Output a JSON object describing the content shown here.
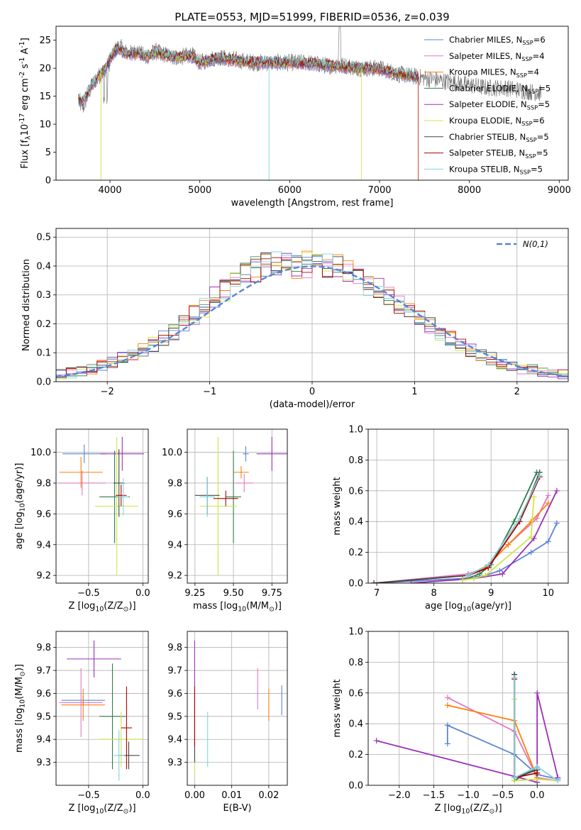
{
  "chart_data": [
    {
      "id": "spectrum",
      "type": "line",
      "title": "PLATE=0553, MJD=51999, FIBERID=0536, z=0.039",
      "xlabel": "wavelength [Angstrom, rest frame]",
      "ylabel": "Flux [f$_\\lambda$10$^{-17}$ erg cm$^{-2}$ s$^{-1}$ A$^{-1}$]",
      "xlim": [
        3400,
        9100
      ],
      "ylim": [
        0,
        27.5
      ],
      "xticks": [
        4000,
        5000,
        6000,
        7000,
        8000,
        9000
      ],
      "yticks": [
        0,
        5,
        10,
        15,
        20,
        25
      ],
      "grid": false,
      "legend_position": "upper right",
      "data_wavelength": [
        3650,
        3700,
        3750,
        3800,
        3850,
        3900,
        3950,
        4000,
        4050,
        4100,
        4200,
        4300,
        4400,
        4500,
        4600,
        4700,
        4800,
        4900,
        5000,
        5200,
        5400,
        5600,
        5800,
        6000,
        6200,
        6400,
        6600,
        6800,
        7000,
        7200,
        7400,
        7600,
        7800,
        8000,
        8200,
        8400,
        8600,
        8800
      ],
      "data_flux": [
        14,
        13,
        15,
        17,
        18,
        19,
        20,
        21,
        23,
        24,
        22.5,
        23,
        22,
        23,
        22.5,
        22,
        22,
        22.5,
        21,
        22,
        21.5,
        21,
        21,
        21,
        21,
        20.5,
        20.5,
        20,
        20,
        19,
        18.5,
        18,
        17.5,
        17,
        16.5,
        16.5,
        16,
        15.5
      ],
      "model_wavelength": [
        3650,
        3700,
        3750,
        3800,
        3850,
        3900,
        3950,
        4000,
        4050,
        4100,
        4200,
        4300,
        4400,
        4500,
        4600,
        4700,
        4800,
        4900,
        5000,
        5200,
        5400,
        5600,
        5800,
        6000,
        6200,
        6400,
        6600,
        6800,
        7000,
        7200,
        7400
      ],
      "model_flux": [
        14.5,
        14,
        15.5,
        17,
        18,
        19,
        20,
        21.5,
        23,
        23.5,
        22.5,
        22.8,
        22,
        22.8,
        22.4,
        22,
        22,
        22.2,
        21,
        21.8,
        21.4,
        21,
        21,
        21,
        20.8,
        20.5,
        20.3,
        20,
        19.8,
        19,
        18.5
      ],
      "series": [
        {
          "name": "Chabrier MILES, N$_{SSP}$=6",
          "color": "#5a84d6"
        },
        {
          "name": "Salpeter MILES, N$_{SSP}$=4",
          "color": "#e377c2"
        },
        {
          "name": "Kroupa MILES, N$_{SSP}$=4",
          "color": "#ff7f0e"
        },
        {
          "name": "Chabrier ELODIE, N$_{SSP}$=5",
          "color": "#2f7d4a"
        },
        {
          "name": "Salpeter ELODIE, N$_{SSP}$=5",
          "color": "#9b30b5"
        },
        {
          "name": "Kroupa ELODIE, N$_{SSP}$=6",
          "color": "#cfe34a"
        },
        {
          "name": "Chabrier STELIB, N$_{SSP}$=5",
          "color": "#444444"
        },
        {
          "name": "Salpeter STELIB, N$_{SSP}$=5",
          "color": "#b00000"
        },
        {
          "name": "Kroupa STELIB, N$_{SSP}$=5",
          "color": "#7fd4e0"
        }
      ]
    },
    {
      "id": "residuals",
      "type": "line",
      "xlabel": "(data-model)/error",
      "ylabel": "Normed distribution",
      "xlim": [
        -2.5,
        2.5
      ],
      "ylim": [
        0,
        0.53
      ],
      "xticks": [
        -2,
        -1,
        0,
        1,
        2
      ],
      "yticks": [
        0.0,
        0.1,
        0.2,
        0.3,
        0.4,
        0.5
      ],
      "grid": true,
      "legend_position": "upper right",
      "gaussian_label": "$\\mathcal{N}(0,1)$",
      "gaussian_color": "#5a84d6",
      "hist_bin_centers": [
        -2.45,
        -2.35,
        -2.25,
        -2.15,
        -2.05,
        -1.95,
        -1.85,
        -1.75,
        -1.65,
        -1.55,
        -1.45,
        -1.35,
        -1.25,
        -1.15,
        -1.05,
        -0.95,
        -0.85,
        -0.75,
        -0.65,
        -0.55,
        -0.45,
        -0.35,
        -0.25,
        -0.15,
        -0.05,
        0.05,
        0.15,
        0.25,
        0.35,
        0.45,
        0.55,
        0.65,
        0.75,
        0.85,
        0.95,
        1.05,
        1.15,
        1.25,
        1.35,
        1.45,
        1.55,
        1.65,
        1.75,
        1.85,
        1.95,
        2.05,
        2.15,
        2.25,
        2.35,
        2.45
      ],
      "hist_base": [
        0.025,
        0.03,
        0.035,
        0.045,
        0.055,
        0.065,
        0.08,
        0.095,
        0.11,
        0.13,
        0.15,
        0.17,
        0.2,
        0.23,
        0.26,
        0.29,
        0.32,
        0.345,
        0.37,
        0.39,
        0.4,
        0.41,
        0.415,
        0.4,
        0.405,
        0.41,
        0.4,
        0.395,
        0.38,
        0.36,
        0.34,
        0.32,
        0.295,
        0.27,
        0.245,
        0.22,
        0.195,
        0.17,
        0.15,
        0.13,
        0.11,
        0.095,
        0.08,
        0.065,
        0.055,
        0.045,
        0.04,
        0.035,
        0.03,
        0.025
      ]
    },
    {
      "id": "z-age",
      "type": "scatter",
      "xlabel": "Z [log$_{10}$(Z/Z$_\\odot$)]",
      "ylabel": "age  [log$_{10}$(age/yr)]",
      "xlim": [
        -0.8,
        0.05
      ],
      "ylim": [
        9.15,
        10.15
      ],
      "xticks": [
        -0.5,
        0.0
      ],
      "yticks": [
        9.2,
        9.4,
        9.6,
        9.8,
        10.0
      ],
      "grid": true,
      "points": [
        {
          "c": 0,
          "x": -0.54,
          "y": 9.99,
          "xerr": 0.2,
          "yerr": 0.06
        },
        {
          "c": 1,
          "x": -0.56,
          "y": 9.8,
          "xerr": 0.22,
          "yerr": 0.08
        },
        {
          "c": 2,
          "x": -0.57,
          "y": 9.87,
          "xerr": 0.2,
          "yerr": 0.1
        },
        {
          "c": 3,
          "x": -0.26,
          "y": 9.71,
          "xerr": 0.14,
          "yerr": 0.3
        },
        {
          "c": 4,
          "x": -0.19,
          "y": 9.99,
          "xerr": 0.2,
          "yerr": 0.11
        },
        {
          "c": 5,
          "x": -0.24,
          "y": 9.65,
          "xerr": 0.2,
          "yerr": 0.45
        },
        {
          "c": 6,
          "x": -0.22,
          "y": 9.8,
          "xerr": 0.05,
          "yerr": 0.22
        },
        {
          "c": 7,
          "x": -0.2,
          "y": 9.72,
          "xerr": 0.05,
          "yerr": 0.07
        },
        {
          "c": 8,
          "x": -0.18,
          "y": 9.71,
          "xerr": 0.05,
          "yerr": 0.12
        }
      ]
    },
    {
      "id": "mass-age",
      "type": "scatter",
      "xlabel": "mass [log$_{10}$(M/M$_\\odot$)]",
      "xlim": [
        9.2,
        9.85
      ],
      "ylim": [
        9.15,
        10.15
      ],
      "xticks": [
        9.25,
        9.5,
        9.75
      ],
      "yticks": [
        9.2,
        9.4,
        9.6,
        9.8,
        10.0
      ],
      "grid": true,
      "points": [
        {
          "c": 0,
          "x": 9.58,
          "y": 9.99,
          "xerr": 0.02,
          "yerr": 0.05
        },
        {
          "c": 1,
          "x": 9.57,
          "y": 9.8,
          "xerr": 0.06,
          "yerr": 0.06
        },
        {
          "c": 2,
          "x": 9.55,
          "y": 9.87,
          "xerr": 0.05,
          "yerr": 0.04
        },
        {
          "c": 3,
          "x": 9.5,
          "y": 9.71,
          "xerr": 0.05,
          "yerr": 0.3
        },
        {
          "c": 4,
          "x": 9.75,
          "y": 9.99,
          "xerr": 0.1,
          "yerr": 0.11
        },
        {
          "c": 5,
          "x": 9.4,
          "y": 9.65,
          "xerr": 0.12,
          "yerr": 0.45
        },
        {
          "c": 6,
          "x": 9.33,
          "y": 9.72,
          "xerr": 0.08,
          "yerr": 0.12
        },
        {
          "c": 7,
          "x": 9.45,
          "y": 9.7,
          "xerr": 0.08,
          "yerr": 0.05
        },
        {
          "c": 8,
          "x": 9.33,
          "y": 9.71,
          "xerr": 0.05,
          "yerr": 0.13
        }
      ]
    },
    {
      "id": "age-weight",
      "type": "line",
      "xlabel": "age  [log$_{10}$(age/yr)]",
      "ylabel": "mass weight",
      "xlim": [
        6.85,
        10.35
      ],
      "ylim": [
        0,
        1
      ],
      "xticks": [
        7,
        8,
        9,
        10
      ],
      "yticks": [
        0.0,
        0.2,
        0.4,
        0.6,
        0.8,
        1.0
      ],
      "grid": true,
      "series": [
        {
          "c": 0,
          "x": [
            6.95,
            8.5,
            8.9,
            9.15,
            9.7,
            10.0,
            10.15
          ],
          "y": [
            0.0,
            0.03,
            0.05,
            0.08,
            0.2,
            0.27,
            0.39
          ]
        },
        {
          "c": 1,
          "x": [
            6.95,
            8.6,
            8.9,
            9.3,
            9.8,
            10.0
          ],
          "y": [
            0.0,
            0.06,
            0.1,
            0.25,
            0.42,
            0.57
          ]
        },
        {
          "c": 2,
          "x": [
            6.95,
            8.6,
            8.9,
            9.3,
            9.7,
            10.0
          ],
          "y": [
            0.0,
            0.05,
            0.1,
            0.25,
            0.4,
            0.52
          ]
        },
        {
          "c": 3,
          "x": [
            8.5,
            8.8,
            9.0,
            9.4,
            9.8
          ],
          "y": [
            0.02,
            0.06,
            0.12,
            0.4,
            0.72
          ]
        },
        {
          "c": 4,
          "x": [
            7.6,
            8.7,
            9.2,
            9.75,
            10.15
          ],
          "y": [
            0.0,
            0.03,
            0.06,
            0.29,
            0.6
          ]
        },
        {
          "c": 5,
          "x": [
            8.5,
            8.7,
            8.9,
            9.7,
            9.75
          ],
          "y": [
            0.02,
            0.03,
            0.05,
            0.3,
            0.56
          ]
        },
        {
          "c": 6,
          "x": [
            6.95,
            8.6,
            8.95,
            9.5,
            9.85
          ],
          "y": [
            0.0,
            0.05,
            0.1,
            0.4,
            0.72
          ]
        },
        {
          "c": 7,
          "x": [
            8.6,
            8.95,
            9.5,
            9.85
          ],
          "y": [
            0.05,
            0.1,
            0.4,
            0.69
          ]
        },
        {
          "c": 8,
          "x": [
            8.6,
            8.95,
            9.5,
            9.85
          ],
          "y": [
            0.05,
            0.12,
            0.42,
            0.7
          ]
        }
      ]
    },
    {
      "id": "z-mass",
      "type": "scatter",
      "xlabel": "Z [log$_{10}$(Z/Z$_\\odot$)]",
      "ylabel": "mass [log$_{10}$(M/M$_\\odot$)]",
      "xlim": [
        -0.8,
        0.05
      ],
      "ylim": [
        9.2,
        9.87
      ],
      "xticks": [
        -0.5,
        0.0
      ],
      "yticks": [
        9.3,
        9.4,
        9.5,
        9.6,
        9.7,
        9.8
      ],
      "grid": true,
      "points": [
        {
          "c": 0,
          "x": -0.55,
          "y": 9.57,
          "xerr": 0.2,
          "yerr": 0.02
        },
        {
          "c": 1,
          "x": -0.57,
          "y": 9.56,
          "xerr": 0.2,
          "yerr": 0.15
        },
        {
          "c": 2,
          "x": -0.55,
          "y": 9.55,
          "xerr": 0.2,
          "yerr": 0.07
        },
        {
          "c": 3,
          "x": -0.28,
          "y": 9.5,
          "xerr": 0.12,
          "yerr": 0.23
        },
        {
          "c": 4,
          "x": -0.45,
          "y": 9.75,
          "xerr": 0.25,
          "yerr": 0.08
        },
        {
          "c": 5,
          "x": -0.2,
          "y": 9.4,
          "xerr": 0.2,
          "yerr": 0.12
        },
        {
          "c": 6,
          "x": -0.13,
          "y": 9.33,
          "xerr": 0.1,
          "yerr": 0.06
        },
        {
          "c": 7,
          "x": -0.15,
          "y": 9.45,
          "xerr": 0.05,
          "yerr": 0.18
        },
        {
          "c": 8,
          "x": -0.22,
          "y": 9.33,
          "xerr": 0.05,
          "yerr": 0.11
        }
      ]
    },
    {
      "id": "ebv-mass",
      "type": "scatter",
      "xlabel": "E(B-V)",
      "xlim": [
        -0.002,
        0.025
      ],
      "ylim": [
        9.2,
        9.87
      ],
      "xticks": [
        0.0,
        0.01,
        0.02
      ],
      "yticks": [
        9.3,
        9.4,
        9.5,
        9.6,
        9.7,
        9.8
      ],
      "grid": true,
      "points": [
        {
          "c": 0,
          "x": 0.0235,
          "y": 9.57,
          "xerr": 0,
          "yerr": 0.065
        },
        {
          "c": 1,
          "x": 0.017,
          "y": 9.62,
          "xerr": 0,
          "yerr": 0.09
        },
        {
          "c": 2,
          "x": 0.02,
          "y": 9.55,
          "xerr": 0,
          "yerr": 0.07
        },
        {
          "c": 3,
          "x": 0.0,
          "y": 9.5,
          "xerr": 0,
          "yerr": 0.1
        },
        {
          "c": 4,
          "x": 0.0,
          "y": 9.6,
          "xerr": 0,
          "yerr": 0.23
        },
        {
          "c": 5,
          "x": 0.0,
          "y": 9.3,
          "xerr": 0,
          "yerr": 0.06
        },
        {
          "c": 6,
          "x": 0.0,
          "y": 9.35,
          "xerr": 0,
          "yerr": 0.05
        },
        {
          "c": 7,
          "x": 0.0,
          "y": 9.5,
          "xerr": 0,
          "yerr": 0.13
        },
        {
          "c": 8,
          "x": 0.0035,
          "y": 9.4,
          "xerr": 0,
          "yerr": 0.12
        }
      ]
    },
    {
      "id": "z-weight",
      "type": "line",
      "xlabel": "Z [log$_{10}$(Z/Z$_\\odot$)]",
      "ylabel": "mass weight",
      "xlim": [
        -2.45,
        0.45
      ],
      "ylim": [
        0,
        1
      ],
      "xticks": [
        -2.0,
        -1.5,
        -1.0,
        -0.5,
        0.0
      ],
      "yticks": [
        0.0,
        0.2,
        0.4,
        0.6,
        0.8,
        1.0
      ],
      "grid": true,
      "series": [
        {
          "c": 0,
          "x": [
            -1.3,
            -1.3,
            -0.33,
            0.0,
            0.3
          ],
          "y": [
            0.27,
            0.39,
            0.2,
            0.07,
            0.04
          ]
        },
        {
          "c": 1,
          "x": [
            -1.3,
            -0.33,
            0.0,
            0.3
          ],
          "y": [
            0.57,
            0.35,
            0.05,
            0.03
          ]
        },
        {
          "c": 2,
          "x": [
            -1.3,
            -0.33,
            0.0
          ],
          "y": [
            0.52,
            0.42,
            0.05
          ]
        },
        {
          "c": 3,
          "x": [
            -0.33,
            -0.33,
            0.0,
            0.0
          ],
          "y": [
            0.72,
            0.03,
            0.12,
            0.02
          ]
        },
        {
          "c": 4,
          "x": [
            -2.33,
            0.0,
            0.0,
            0.3
          ],
          "y": [
            0.29,
            0.02,
            0.6,
            0.05
          ]
        },
        {
          "c": 5,
          "x": [
            -0.33,
            -0.33,
            0.0,
            0.3
          ],
          "y": [
            0.56,
            0.03,
            0.04,
            0.03
          ]
        },
        {
          "c": 6,
          "x": [
            -0.33,
            -0.33,
            0.0
          ],
          "y": [
            0.72,
            0.05,
            0.1
          ]
        },
        {
          "c": 7,
          "x": [
            -0.33,
            -0.33,
            0.0
          ],
          "y": [
            0.69,
            0.05,
            0.08
          ]
        },
        {
          "c": 8,
          "x": [
            -0.33,
            -0.33,
            0.0,
            0.3
          ],
          "y": [
            0.7,
            0.05,
            0.12,
            0.03
          ]
        }
      ]
    }
  ]
}
